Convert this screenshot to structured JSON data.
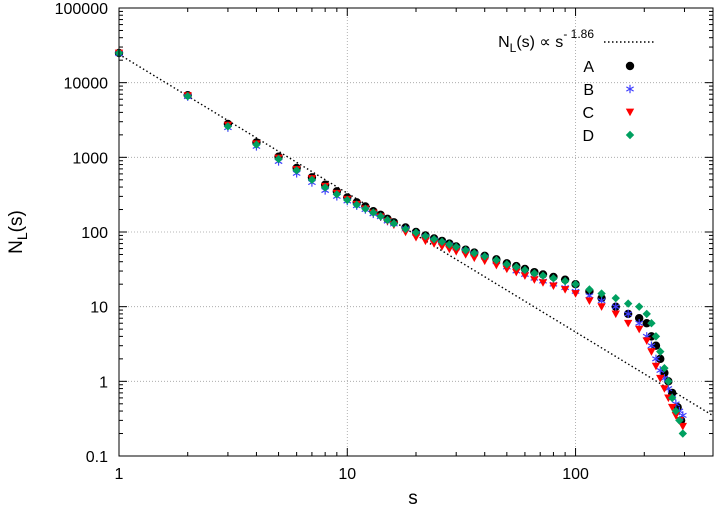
{
  "chart_data": {
    "type": "scatter",
    "x_scale": "log",
    "y_scale": "log",
    "xlabel": "s",
    "ylabel": {
      "base": "N",
      "sub": "L",
      "rest": "(s)"
    },
    "xlim": [
      1,
      400
    ],
    "ylim": [
      0.1,
      100000
    ],
    "grid": true,
    "x_ticks": [
      {
        "value": 1,
        "label": "1"
      },
      {
        "value": 10,
        "label": "10"
      },
      {
        "value": 100,
        "label": "100"
      }
    ],
    "y_ticks": [
      {
        "value": 0.1,
        "label": "0.1"
      },
      {
        "value": 1,
        "label": "1"
      },
      {
        "value": 10,
        "label": "10"
      },
      {
        "value": 100,
        "label": "100"
      },
      {
        "value": 1000,
        "label": "1000"
      },
      {
        "value": 10000,
        "label": "10000"
      },
      {
        "value": 100000,
        "label": "100000"
      }
    ],
    "fit": {
      "label": {
        "base": "N",
        "sub": "L",
        "mid": "(s) ∝ s",
        "sup": "- 1.86"
      },
      "amplitude": 24000,
      "exponent": -1.86,
      "style": "dotted",
      "color": "#000000"
    },
    "legend_position": "top-right",
    "series": [
      {
        "name": "A",
        "color": "#000000",
        "marker": "circle",
        "points": [
          [
            1,
            25000
          ],
          [
            2,
            6800
          ],
          [
            3,
            2800
          ],
          [
            4,
            1580
          ],
          [
            5,
            1020
          ],
          [
            6,
            720
          ],
          [
            7,
            540
          ],
          [
            8,
            430
          ],
          [
            9,
            350
          ],
          [
            10,
            290
          ],
          [
            11,
            250
          ],
          [
            12,
            220
          ],
          [
            13,
            190
          ],
          [
            14,
            170
          ],
          [
            15,
            150
          ],
          [
            16,
            135
          ],
          [
            18,
            115
          ],
          [
            20,
            100
          ],
          [
            22,
            90
          ],
          [
            24,
            82
          ],
          [
            26,
            76
          ],
          [
            28,
            70
          ],
          [
            30,
            64
          ],
          [
            33,
            58
          ],
          [
            36,
            53
          ],
          [
            40,
            48
          ],
          [
            45,
            43
          ],
          [
            50,
            38
          ],
          [
            55,
            35
          ],
          [
            60,
            32
          ],
          [
            66,
            29
          ],
          [
            72,
            27
          ],
          [
            80,
            25
          ],
          [
            90,
            23
          ],
          [
            100,
            20
          ],
          [
            115,
            16
          ],
          [
            130,
            13
          ],
          [
            150,
            10
          ],
          [
            170,
            8
          ],
          [
            190,
            7
          ],
          [
            205,
            6
          ],
          [
            215,
            4
          ],
          [
            225,
            3
          ],
          [
            235,
            2
          ],
          [
            245,
            1.3
          ],
          [
            255,
            1
          ],
          [
            265,
            0.7
          ],
          [
            280,
            0.45
          ],
          [
            290,
            0.3
          ]
        ]
      },
      {
        "name": "B",
        "color": "#3f3fff",
        "marker": "asterisk",
        "points": [
          [
            1,
            24500
          ],
          [
            2,
            6500
          ],
          [
            3,
            2500
          ],
          [
            4,
            1400
          ],
          [
            5,
            880
          ],
          [
            6,
            610
          ],
          [
            7,
            460
          ],
          [
            8,
            360
          ],
          [
            9,
            300
          ],
          [
            10,
            260
          ],
          [
            11,
            225
          ],
          [
            12,
            200
          ],
          [
            13,
            175
          ],
          [
            14,
            160
          ],
          [
            15,
            140
          ],
          [
            16,
            128
          ],
          [
            18,
            110
          ],
          [
            20,
            96
          ],
          [
            22,
            86
          ],
          [
            24,
            78
          ],
          [
            26,
            72
          ],
          [
            28,
            67
          ],
          [
            30,
            61
          ],
          [
            33,
            56
          ],
          [
            36,
            51
          ],
          [
            40,
            46
          ],
          [
            45,
            40
          ],
          [
            50,
            34
          ],
          [
            55,
            30
          ],
          [
            60,
            27
          ],
          [
            66,
            24
          ],
          [
            72,
            22
          ],
          [
            80,
            20
          ],
          [
            90,
            18
          ],
          [
            100,
            16
          ],
          [
            115,
            14
          ],
          [
            130,
            12
          ],
          [
            150,
            10
          ],
          [
            170,
            8
          ],
          [
            190,
            6
          ],
          [
            205,
            4
          ],
          [
            215,
            3
          ],
          [
            225,
            2
          ],
          [
            235,
            1.4
          ],
          [
            245,
            1.1
          ],
          [
            255,
            0.8
          ],
          [
            265,
            0.6
          ],
          [
            275,
            0.5
          ],
          [
            285,
            0.4
          ],
          [
            295,
            0.35
          ]
        ]
      },
      {
        "name": "C",
        "color": "#ff0000",
        "marker": "triangle-down",
        "points": [
          [
            1,
            25000
          ],
          [
            2,
            6700
          ],
          [
            3,
            2700
          ],
          [
            4,
            1520
          ],
          [
            5,
            980
          ],
          [
            6,
            690
          ],
          [
            7,
            520
          ],
          [
            8,
            410
          ],
          [
            9,
            330
          ],
          [
            10,
            275
          ],
          [
            11,
            235
          ],
          [
            12,
            205
          ],
          [
            13,
            180
          ],
          [
            14,
            160
          ],
          [
            15,
            140
          ],
          [
            16,
            125
          ],
          [
            18,
            100
          ],
          [
            20,
            85
          ],
          [
            22,
            76
          ],
          [
            24,
            70
          ],
          [
            26,
            64
          ],
          [
            28,
            59
          ],
          [
            30,
            55
          ],
          [
            33,
            50
          ],
          [
            36,
            45
          ],
          [
            40,
            41
          ],
          [
            45,
            36
          ],
          [
            50,
            32
          ],
          [
            55,
            29
          ],
          [
            60,
            26
          ],
          [
            66,
            23
          ],
          [
            72,
            21
          ],
          [
            80,
            19
          ],
          [
            90,
            17
          ],
          [
            100,
            15
          ],
          [
            115,
            12
          ],
          [
            130,
            10
          ],
          [
            150,
            8
          ],
          [
            170,
            6
          ],
          [
            190,
            5
          ],
          [
            205,
            3.5
          ],
          [
            215,
            2.5
          ],
          [
            225,
            1.6
          ],
          [
            235,
            1.1
          ],
          [
            245,
            0.8
          ],
          [
            255,
            0.6
          ],
          [
            265,
            0.45
          ],
          [
            275,
            0.35
          ],
          [
            285,
            0.3
          ],
          [
            295,
            0.25
          ]
        ]
      },
      {
        "name": "D",
        "color": "#00a060",
        "marker": "diamond",
        "points": [
          [
            1,
            25000
          ],
          [
            2,
            6600
          ],
          [
            3,
            2600
          ],
          [
            4,
            1480
          ],
          [
            5,
            950
          ],
          [
            6,
            670
          ],
          [
            7,
            500
          ],
          [
            8,
            395
          ],
          [
            9,
            320
          ],
          [
            10,
            268
          ],
          [
            11,
            232
          ],
          [
            12,
            205
          ],
          [
            13,
            182
          ],
          [
            14,
            162
          ],
          [
            15,
            145
          ],
          [
            16,
            130
          ],
          [
            18,
            110
          ],
          [
            20,
            98
          ],
          [
            22,
            88
          ],
          [
            24,
            80
          ],
          [
            26,
            74
          ],
          [
            28,
            68
          ],
          [
            30,
            63
          ],
          [
            33,
            57
          ],
          [
            36,
            52
          ],
          [
            40,
            47
          ],
          [
            45,
            42
          ],
          [
            50,
            37
          ],
          [
            55,
            34
          ],
          [
            60,
            31
          ],
          [
            66,
            28
          ],
          [
            72,
            26
          ],
          [
            80,
            24
          ],
          [
            90,
            22
          ],
          [
            100,
            20
          ],
          [
            115,
            17
          ],
          [
            130,
            15
          ],
          [
            150,
            13
          ],
          [
            170,
            11
          ],
          [
            190,
            10
          ],
          [
            205,
            8
          ],
          [
            215,
            6
          ],
          [
            225,
            4
          ],
          [
            235,
            2.5
          ],
          [
            245,
            1.5
          ],
          [
            255,
            1
          ],
          [
            265,
            0.6
          ],
          [
            275,
            0.4
          ],
          [
            285,
            0.3
          ],
          [
            295,
            0.2
          ]
        ]
      }
    ]
  }
}
